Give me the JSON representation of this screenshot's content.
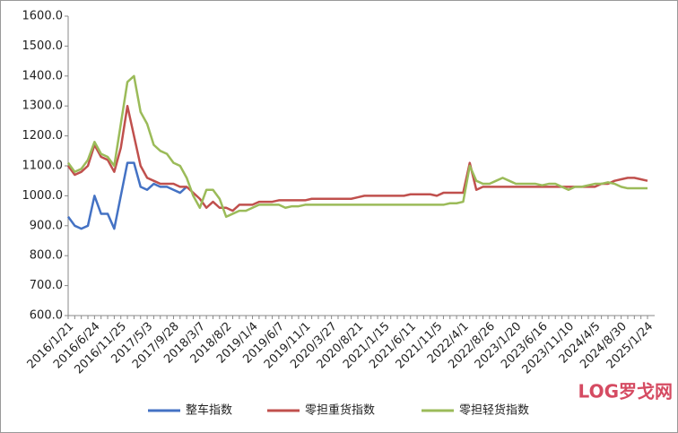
{
  "chart_data": {
    "type": "line",
    "categories": [
      "2016/1/21",
      null,
      null,
      null,
      "2016/6/24",
      null,
      null,
      null,
      "2016/11/25",
      null,
      null,
      null,
      "2017/5/3",
      null,
      null,
      null,
      "2017/9/28",
      null,
      null,
      null,
      "2018/3/7",
      null,
      null,
      null,
      "2018/8/2",
      null,
      null,
      null,
      "2019/1/4",
      null,
      null,
      null,
      "2019/6/7",
      null,
      null,
      null,
      "2019/11/1",
      null,
      null,
      null,
      "2020/3/27",
      null,
      null,
      null,
      "2020/8/21",
      null,
      null,
      null,
      "2021/1/15",
      null,
      null,
      null,
      "2021/6/11",
      null,
      null,
      null,
      "2021/11/5",
      null,
      null,
      null,
      "2022/4/1",
      null,
      null,
      null,
      "2022/8/26",
      null,
      null,
      null,
      "2023/1/20",
      null,
      null,
      null,
      "2023/6/16",
      null,
      null,
      null,
      "2023/11/10",
      null,
      null,
      null,
      "2024/4/5",
      null,
      null,
      null,
      "2024/8/30",
      null,
      null,
      null,
      "2025/1/24"
    ],
    "series": [
      {
        "name": "整车指数",
        "color": "#4472c4",
        "values": [
          930,
          900,
          890,
          900,
          1000,
          940,
          940,
          890,
          1000,
          1110,
          1110,
          1030,
          1020,
          1040,
          1030,
          1030,
          1020,
          1010,
          1030,
          null,
          null,
          null,
          null,
          null,
          null,
          null,
          null,
          null,
          null,
          null,
          null,
          null,
          null,
          null,
          null,
          null,
          null,
          null,
          null,
          null,
          null,
          null,
          null,
          null,
          null,
          null,
          null,
          null,
          null,
          null,
          null,
          null,
          null,
          null,
          null,
          null,
          null,
          null,
          null,
          null,
          null,
          null,
          null,
          null,
          null,
          null,
          null,
          null,
          null,
          null,
          null,
          null,
          null,
          null,
          null,
          null,
          null,
          null,
          null,
          null,
          null,
          null,
          null,
          null,
          null,
          null,
          null,
          null,
          null
        ]
      },
      {
        "name": "零担重货指数",
        "color": "#c0504d",
        "values": [
          1100,
          1070,
          1080,
          1100,
          1170,
          1130,
          1120,
          1080,
          1160,
          1300,
          1200,
          1100,
          1060,
          1050,
          1040,
          1040,
          1040,
          1030,
          1030,
          1010,
          990,
          960,
          980,
          960,
          960,
          950,
          970,
          970,
          970,
          980,
          980,
          980,
          985,
          985,
          985,
          985,
          985,
          990,
          990,
          990,
          990,
          990,
          990,
          990,
          995,
          1000,
          1000,
          1000,
          1000,
          1000,
          1000,
          1000,
          1005,
          1005,
          1005,
          1005,
          1000,
          1010,
          1010,
          1010,
          1010,
          1110,
          1020,
          1030,
          1030,
          1030,
          1030,
          1030,
          1030,
          1030,
          1030,
          1030,
          1030,
          1030,
          1030,
          1030,
          1030,
          1030,
          1030,
          1030,
          1030,
          1040,
          1040,
          1050,
          1055,
          1060,
          1060,
          1055,
          1050
        ]
      },
      {
        "name": "零担轻货指数",
        "color": "#9bbb59",
        "values": [
          1110,
          1080,
          1090,
          1120,
          1180,
          1140,
          1130,
          1100,
          1240,
          1380,
          1400,
          1280,
          1240,
          1170,
          1150,
          1140,
          1110,
          1100,
          1060,
          1000,
          960,
          1020,
          1020,
          990,
          930,
          940,
          950,
          950,
          960,
          970,
          970,
          970,
          970,
          960,
          965,
          965,
          970,
          970,
          970,
          970,
          970,
          970,
          970,
          970,
          970,
          970,
          970,
          970,
          970,
          970,
          970,
          970,
          970,
          970,
          970,
          970,
          970,
          970,
          975,
          975,
          980,
          1100,
          1050,
          1040,
          1040,
          1050,
          1060,
          1050,
          1040,
          1040,
          1040,
          1040,
          1035,
          1040,
          1040,
          1030,
          1020,
          1030,
          1030,
          1035,
          1040,
          1040,
          1045,
          1040,
          1030,
          1025,
          1025,
          1025,
          1025
        ]
      }
    ],
    "ylim": [
      600,
      1600
    ],
    "yticks": [
      {
        "value": 600,
        "label": "600.0"
      },
      {
        "value": 700,
        "label": "700.0"
      },
      {
        "value": 800,
        "label": "800.0"
      },
      {
        "value": 900,
        "label": "900.0"
      },
      {
        "value": 1000,
        "label": "1000.0"
      },
      {
        "value": 1100,
        "label": "1100.0"
      },
      {
        "value": 1200,
        "label": "1200.0"
      },
      {
        "value": 1300,
        "label": "1300.0"
      },
      {
        "value": 1400,
        "label": "1400.0"
      },
      {
        "value": 1500,
        "label": "1500.0"
      },
      {
        "value": 1600,
        "label": "1600.0"
      }
    ],
    "grid": false,
    "legend": "bottom",
    "watermark": "LOG罗戈网"
  }
}
